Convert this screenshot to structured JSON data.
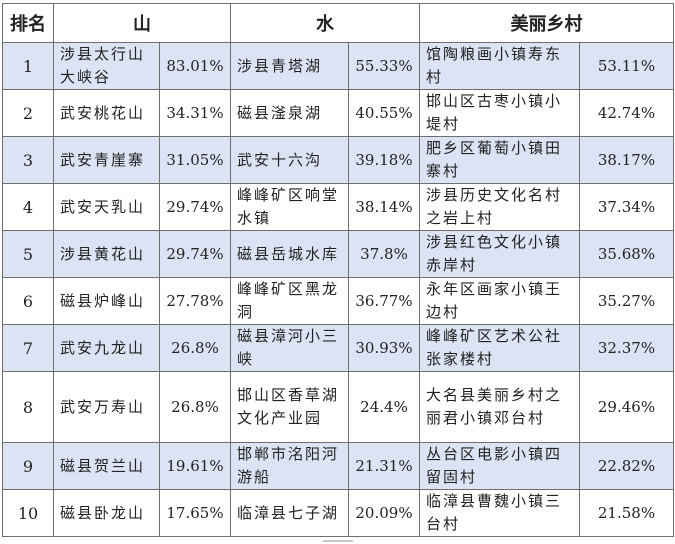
{
  "header": {
    "rank": "排名",
    "mountain": "山",
    "water": "水",
    "village": "美丽乡村"
  },
  "rows": [
    {
      "rank": "1",
      "mountain": "涉县太行山大峡谷",
      "mountain_pct": "83.01%",
      "water": "涉县青塔湖",
      "water_pct": "55.33%",
      "village": "馆陶粮画小镇寿东村",
      "village_pct": "53.11%"
    },
    {
      "rank": "2",
      "mountain": "武安桃花山",
      "mountain_pct": "34.31%",
      "water": "磁县滏泉湖",
      "water_pct": "40.55%",
      "village": "邯山区古枣小镇小堤村",
      "village_pct": "42.74%"
    },
    {
      "rank": "3",
      "mountain": "武安青崖寨",
      "mountain_pct": "31.05%",
      "water": "武安十六沟",
      "water_pct": "39.18%",
      "village": "肥乡区葡萄小镇田寨村",
      "village_pct": "38.17%"
    },
    {
      "rank": "4",
      "mountain": "武安天乳山",
      "mountain_pct": "29.74%",
      "water": "峰峰矿区响堂水镇",
      "water_pct": "38.14%",
      "village": "涉县历史文化名村之岩上村",
      "village_pct": "37.34%"
    },
    {
      "rank": "5",
      "mountain": "涉县黄花山",
      "mountain_pct": "29.74%",
      "water": "磁县岳城水库",
      "water_pct": "37.8%",
      "village": "涉县红色文化小镇赤岸村",
      "village_pct": "35.68%"
    },
    {
      "rank": "6",
      "mountain": "磁县炉峰山",
      "mountain_pct": "27.78%",
      "water": "峰峰矿区黑龙洞",
      "water_pct": "36.77%",
      "village": "永年区画家小镇王边村",
      "village_pct": "35.27%"
    },
    {
      "rank": "7",
      "mountain": "武安九龙山",
      "mountain_pct": "26.8%",
      "water": "磁县漳河小三峡",
      "water_pct": "30.93%",
      "village": "峰峰矿区艺术公社张家楼村",
      "village_pct": "32.37%"
    },
    {
      "rank": "8",
      "mountain": "武安万寿山",
      "mountain_pct": "26.8%",
      "water": "邯山区香草湖文化产业园",
      "water_pct": "24.4%",
      "village": "大名县美丽乡村之丽君小镇邓台村",
      "village_pct": "29.46%"
    },
    {
      "rank": "9",
      "mountain": "磁县贺兰山",
      "mountain_pct": "19.61%",
      "water": "邯郸市洺阳河游船",
      "water_pct": "21.31%",
      "village": "丛台区电影小镇四留固村",
      "village_pct": "22.82%"
    },
    {
      "rank": "10",
      "mountain": "磁县卧龙山",
      "mountain_pct": "17.65%",
      "water": "临漳县七子湖",
      "water_pct": "20.09%",
      "village": "临漳县曹魏小镇三台村",
      "village_pct": "21.58%"
    }
  ]
}
